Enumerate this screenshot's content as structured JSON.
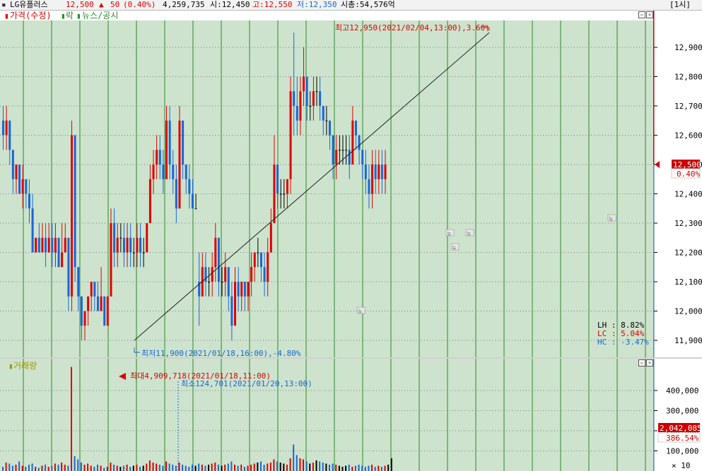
{
  "header": {
    "stock_name": "LG유플러스",
    "price": "12,500",
    "change_arrow": "▲",
    "change": "50",
    "change_pct": "(0.40%)",
    "volume": "4,259,735",
    "open": "시:12,450",
    "high": "고:12,550",
    "low": "저:12,350",
    "market_cap": "시총:54,576억",
    "interval": "[1시]"
  },
  "price_panel": {
    "legend_price": "가격(수정)",
    "legend_fall": "락",
    "legend_news": "뉴스/공시",
    "max_annotation": "최고12,950(2021/02/04,13:00),3.60%",
    "min_annotation": "최저11,900(2021/01/18,16:00),-4.80%",
    "stats": {
      "lh": "LH :  8.82%",
      "lc": "LC :  5.04%",
      "hc": "HC : -3.47%"
    },
    "news_marker": "뉴"
  },
  "price_axis": {
    "ticks": [
      "12,900",
      "12,800",
      "12,700",
      "12,600",
      "12,500",
      "12,400",
      "12,300",
      "12,200",
      "12,100",
      "12,000",
      "11,900"
    ],
    "current_price": "12,500",
    "current_pct": "0.40%"
  },
  "volume_panel": {
    "legend": "거래량",
    "max_annotation": "최대4,909,718(2021/01/18,11:00)",
    "min_annotation": "최소124,701(2021/01/20,13:00)"
  },
  "volume_axis": {
    "ticks": [
      "400,000",
      "300,000",
      "200,000",
      "100,000"
    ],
    "current_volume": "2,042,085",
    "current_pct": "386.54%",
    "multiplier": "× 10"
  },
  "colors": {
    "up": "#e00000",
    "down": "#1a66d8",
    "flat": "#000000",
    "bg": "#cde3cd",
    "grid": "#2c8a2c"
  },
  "chart_data": {
    "type": "candlestick",
    "ylim": [
      11850,
      12980
    ],
    "candles": [
      [
        12650,
        12700,
        12550,
        12600
      ],
      [
        12600,
        12700,
        12550,
        12650
      ],
      [
        12650,
        12650,
        12500,
        12550
      ],
      [
        12550,
        12550,
        12400,
        12450
      ],
      [
        12450,
        12500,
        12400,
        12500
      ],
      [
        12500,
        12500,
        12400,
        12400
      ],
      [
        12400,
        12500,
        12350,
        12450
      ],
      [
        12450,
        12450,
        12350,
        12400
      ],
      [
        12400,
        12450,
        12300,
        12350
      ],
      [
        12350,
        12400,
        12200,
        12200
      ],
      [
        12200,
        12250,
        12200,
        12250
      ],
      [
        12250,
        12300,
        12200,
        12200
      ],
      [
        12200,
        12300,
        12200,
        12250
      ],
      [
        12250,
        12300,
        12150,
        12200
      ],
      [
        12200,
        12300,
        12200,
        12250
      ],
      [
        12250,
        12300,
        12150,
        12200
      ],
      [
        12200,
        12300,
        12150,
        12250
      ],
      [
        12250,
        12250,
        12150,
        12150
      ],
      [
        12150,
        12300,
        12150,
        12200
      ],
      [
        12200,
        12300,
        12200,
        12250
      ],
      [
        12250,
        12250,
        12000,
        12050
      ],
      [
        12050,
        12650,
        12000,
        12600
      ],
      [
        12600,
        12600,
        12100,
        12150
      ],
      [
        12150,
        12150,
        12000,
        12050
      ],
      [
        12050,
        12050,
        11900,
        11950
      ],
      [
        11950,
        12000,
        11900,
        12000
      ],
      [
        12000,
        12050,
        11950,
        12050
      ],
      [
        12050,
        12100,
        12000,
        12100
      ],
      [
        12100,
        12100,
        12000,
        12050
      ],
      [
        12050,
        12100,
        12000,
        12000
      ],
      [
        12000,
        12150,
        12000,
        12050
      ],
      [
        12050,
        12050,
        11950,
        11950
      ],
      [
        11950,
        12050,
        11950,
        12050
      ],
      [
        12050,
        12350,
        12050,
        12300
      ],
      [
        12300,
        12350,
        12150,
        12200
      ],
      [
        12200,
        12300,
        12150,
        12250
      ],
      [
        12250,
        12300,
        12200,
        12250
      ],
      [
        12250,
        12300,
        12150,
        12200
      ],
      [
        12200,
        12300,
        12150,
        12250
      ],
      [
        12250,
        12300,
        12150,
        12200
      ],
      [
        12200,
        12250,
        12150,
        12200
      ],
      [
        12200,
        12300,
        12150,
        12250
      ],
      [
        12250,
        12300,
        12150,
        12200
      ],
      [
        12200,
        12250,
        12150,
        12200
      ],
      [
        12200,
        12300,
        12200,
        12300
      ],
      [
        12300,
        12500,
        12300,
        12450
      ],
      [
        12450,
        12550,
        12400,
        12500
      ],
      [
        12500,
        12600,
        12450,
        12550
      ],
      [
        12550,
        12600,
        12450,
        12500
      ],
      [
        12500,
        12550,
        12400,
        12450
      ],
      [
        12450,
        12700,
        12450,
        12650
      ],
      [
        12650,
        12700,
        12450,
        12500
      ],
      [
        12500,
        12550,
        12400,
        12450
      ],
      [
        12450,
        12500,
        12300,
        12350
      ],
      [
        12350,
        12700,
        12350,
        12650
      ],
      [
        12650,
        12650,
        12450,
        12500
      ],
      [
        12500,
        12500,
        12400,
        12450
      ],
      [
        12450,
        12500,
        12350,
        12400
      ],
      [
        12400,
        12450,
        12350,
        12350
      ],
      [
        12350,
        12400,
        12350,
        12350
      ],
      [
        12100,
        12200,
        11950,
        12050
      ],
      [
        12050,
        12200,
        12050,
        12150
      ],
      [
        12150,
        12200,
        12050,
        12100
      ],
      [
        12100,
        12150,
        12050,
        12100
      ],
      [
        12100,
        12200,
        12050,
        12150
      ],
      [
        12150,
        12300,
        12100,
        12250
      ],
      [
        12250,
        12250,
        12050,
        12100
      ],
      [
        12100,
        12150,
        12050,
        12100
      ],
      [
        12100,
        12200,
        12050,
        12150
      ],
      [
        12150,
        12150,
        12000,
        12050
      ],
      [
        12050,
        12100,
        11900,
        11950
      ],
      [
        11950,
        12150,
        11950,
        12100
      ],
      [
        12100,
        12150,
        12000,
        12050
      ],
      [
        12050,
        12100,
        12000,
        12100
      ],
      [
        12100,
        12100,
        12000,
        12050
      ],
      [
        12050,
        12100,
        12000,
        12100
      ],
      [
        12100,
        12200,
        12050,
        12150
      ],
      [
        12150,
        12200,
        12100,
        12200
      ],
      [
        12200,
        12250,
        12150,
        12200
      ],
      [
        12200,
        12200,
        12100,
        12150
      ],
      [
        12150,
        12200,
        12050,
        12100
      ],
      [
        12100,
        12250,
        12050,
        12200
      ],
      [
        12200,
        12350,
        12200,
        12300
      ],
      [
        12300,
        12600,
        12300,
        12500
      ],
      [
        12500,
        12500,
        12350,
        12400
      ],
      [
        12400,
        12450,
        12350,
        12400
      ],
      [
        12400,
        12450,
        12350,
        12400
      ],
      [
        12400,
        12450,
        12350,
        12450
      ],
      [
        12450,
        12800,
        12400,
        12750
      ],
      [
        12750,
        12950,
        12600,
        12700
      ],
      [
        12700,
        12800,
        12600,
        12650
      ],
      [
        12650,
        12800,
        12600,
        12750
      ],
      [
        12750,
        12900,
        12700,
        12800
      ],
      [
        12800,
        12800,
        12650,
        12700
      ],
      [
        12700,
        12750,
        12650,
        12700
      ],
      [
        12700,
        12800,
        12650,
        12750
      ],
      [
        12750,
        12800,
        12700,
        12750
      ],
      [
        12750,
        12800,
        12650,
        12700
      ],
      [
        12700,
        12700,
        12600,
        12650
      ],
      [
        12650,
        12700,
        12600,
        12650
      ],
      [
        12650,
        12650,
        12550,
        12600
      ],
      [
        12600,
        12600,
        12450,
        12500
      ],
      [
        12500,
        12600,
        12450,
        12550
      ],
      [
        12550,
        12600,
        12500,
        12550
      ],
      [
        12550,
        12600,
        12500,
        12550
      ],
      [
        12550,
        12600,
        12500,
        12550
      ],
      [
        12550,
        12600,
        12450,
        12500
      ],
      [
        12500,
        12700,
        12500,
        12650
      ],
      [
        12650,
        12650,
        12550,
        12600
      ],
      [
        12600,
        12600,
        12500,
        12550
      ],
      [
        12550,
        12550,
        12450,
        12500
      ],
      [
        12500,
        12550,
        12400,
        12450
      ],
      [
        12450,
        12500,
        12350,
        12400
      ],
      [
        12400,
        12550,
        12350,
        12500
      ],
      [
        12500,
        12550,
        12400,
        12450
      ],
      [
        12450,
        12550,
        12400,
        12500
      ],
      [
        12500,
        12550,
        12400,
        12450
      ],
      [
        12450,
        12550,
        12400,
        12500
      ]
    ],
    "volume": [
      20,
      40,
      35,
      25,
      30,
      45,
      25,
      20,
      30,
      35,
      20,
      15,
      25,
      30,
      20,
      25,
      35,
      30,
      40,
      30,
      25,
      491,
      70,
      55,
      40,
      30,
      35,
      25,
      20,
      30,
      25,
      15,
      20,
      40,
      30,
      25,
      20,
      25,
      30,
      20,
      25,
      30,
      20,
      25,
      35,
      50,
      40,
      35,
      30,
      25,
      45,
      35,
      30,
      25,
      40,
      30,
      25,
      20,
      30,
      25,
      35,
      30,
      25,
      30,
      35,
      40,
      30,
      25,
      30,
      35,
      45,
      30,
      25,
      30,
      20,
      25,
      30,
      35,
      40,
      45,
      30,
      35,
      40,
      55,
      45,
      40,
      35,
      30,
      60,
      125,
      75,
      60,
      55,
      45,
      35,
      40,
      50,
      45,
      40,
      35,
      30,
      35,
      30,
      25,
      20,
      25,
      30,
      20,
      25,
      30,
      25,
      20,
      25,
      30,
      20,
      25,
      20,
      25,
      30,
      60
    ]
  }
}
